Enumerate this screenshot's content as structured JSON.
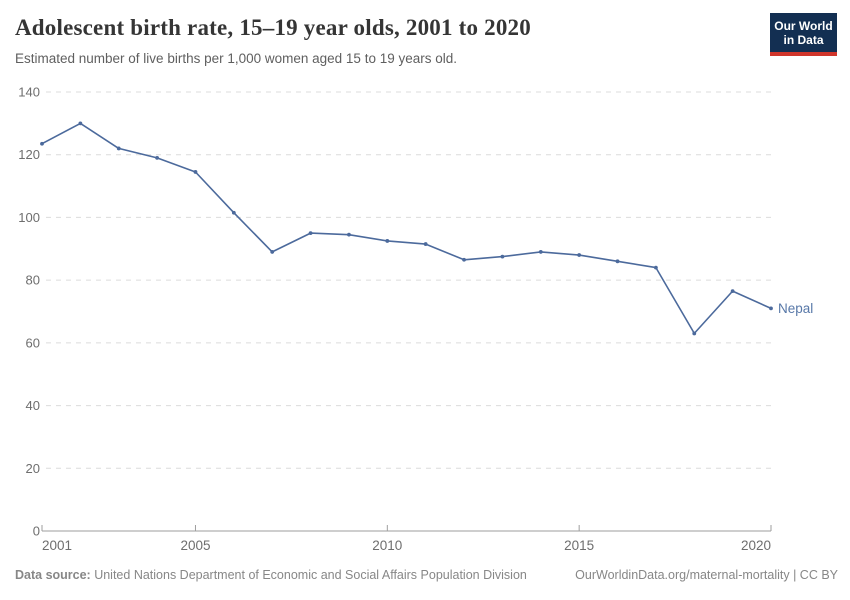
{
  "header": {
    "title": "Adolescent birth rate, 15–19 year olds, 2001 to 2020",
    "subtitle": "Estimated number of live births per 1,000 women aged 15 to 19 years old.",
    "logo_line1": "Our World",
    "logo_line2": "in Data"
  },
  "chart_data": {
    "type": "line",
    "title": "Adolescent birth rate, 15–19 year olds, 2001 to 2020",
    "subtitle": "Estimated number of live births per 1,000 women aged 15 to 19 years old.",
    "entity_label": "Nepal",
    "x": [
      2001,
      2002,
      2003,
      2004,
      2005,
      2006,
      2007,
      2008,
      2009,
      2010,
      2011,
      2012,
      2013,
      2014,
      2015,
      2016,
      2017,
      2018,
      2019,
      2020
    ],
    "series": [
      {
        "name": "Nepal",
        "values": [
          123.5,
          130,
          122,
          119,
          114.5,
          101.5,
          89,
          95,
          94.5,
          92.5,
          91.5,
          86.5,
          87.5,
          89,
          88,
          86,
          84,
          63,
          76.5,
          71
        ]
      }
    ],
    "xlabel": "",
    "ylabel": "",
    "ylim": [
      0,
      140
    ],
    "xlim": [
      2001,
      2020
    ],
    "yticks": [
      0,
      20,
      40,
      60,
      80,
      100,
      120,
      140
    ],
    "xticks": [
      2001,
      2005,
      2010,
      2015,
      2020
    ],
    "grid": "horizontal-dashed",
    "legend_position": "end-of-line-label"
  },
  "footer": {
    "source_label": "Data source:",
    "source_text": " United Nations Department of Economic and Social Affairs Population Division",
    "link_text": "OurWorldinData.org/maternal-mortality | CC BY"
  },
  "colors": {
    "series": "#4c6a9c",
    "entity_label": "#5878a8",
    "gridline": "#dcdcdc",
    "axis": "#9e9e9e",
    "tick_label": "#6e6e6e",
    "logo_bg": "#132f52",
    "logo_accent": "#d0352b"
  }
}
